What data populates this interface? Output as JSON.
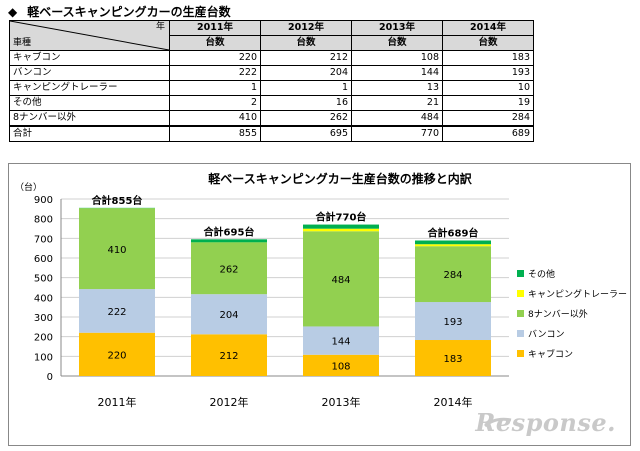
{
  "heading": {
    "marker": "◆",
    "title": "軽ベースキャンピングカーの生産台数"
  },
  "table": {
    "corner_year": "年",
    "corner_kind": "車種",
    "years": [
      "2011年",
      "2012年",
      "2013年",
      "2014年"
    ],
    "unit": "台数",
    "rows": [
      {
        "label": "キャブコン",
        "values": [
          "220",
          "212",
          "108",
          "183"
        ]
      },
      {
        "label": "バンコン",
        "values": [
          "222",
          "204",
          "144",
          "193"
        ]
      },
      {
        "label": "キャンピングトレーラー",
        "values": [
          "1",
          "1",
          "13",
          "10"
        ]
      },
      {
        "label": "その他",
        "values": [
          "2",
          "16",
          "21",
          "19"
        ]
      },
      {
        "label": "8ナンバー以外",
        "values": [
          "410",
          "262",
          "484",
          "284"
        ]
      }
    ],
    "total": {
      "label": "合計",
      "values": [
        "855",
        "695",
        "770",
        "689"
      ]
    }
  },
  "chart_data": {
    "type": "bar",
    "stacked": true,
    "title": "軽ベースキャンピングカー生産台数の推移と内訳",
    "y_unit_label": "（台）",
    "ylim": [
      0,
      900
    ],
    "yticks": [
      0,
      100,
      200,
      300,
      400,
      500,
      600,
      700,
      800,
      900
    ],
    "grid": true,
    "legend_position": "right",
    "categories": [
      "2011年",
      "2012年",
      "2013年",
      "2014年"
    ],
    "series": [
      {
        "name": "キャブコン",
        "color": "#ffc000",
        "values": [
          220,
          212,
          108,
          183
        ]
      },
      {
        "name": "バンコン",
        "color": "#b8cce4",
        "values": [
          222,
          204,
          144,
          193
        ]
      },
      {
        "name": "8ナンバー以外",
        "color": "#92d050",
        "values": [
          410,
          262,
          484,
          284
        ]
      },
      {
        "name": "キャンピングトレーラー",
        "color": "#ffff00",
        "values": [
          1,
          1,
          13,
          10
        ]
      },
      {
        "name": "その他",
        "color": "#00b050",
        "values": [
          2,
          16,
          21,
          19
        ]
      }
    ],
    "labeled_series": [
      "キャブコン",
      "バンコン",
      "8ナンバー以外"
    ],
    "totals": [
      855,
      695,
      770,
      689
    ],
    "total_labels": [
      "合計855台",
      "合計695台",
      "合計770台",
      "合計689台"
    ],
    "legend_order": [
      "その他",
      "キャンピングトレーラー",
      "8ナンバー以外",
      "バンコン",
      "キャブコン"
    ]
  },
  "watermark": "Response."
}
